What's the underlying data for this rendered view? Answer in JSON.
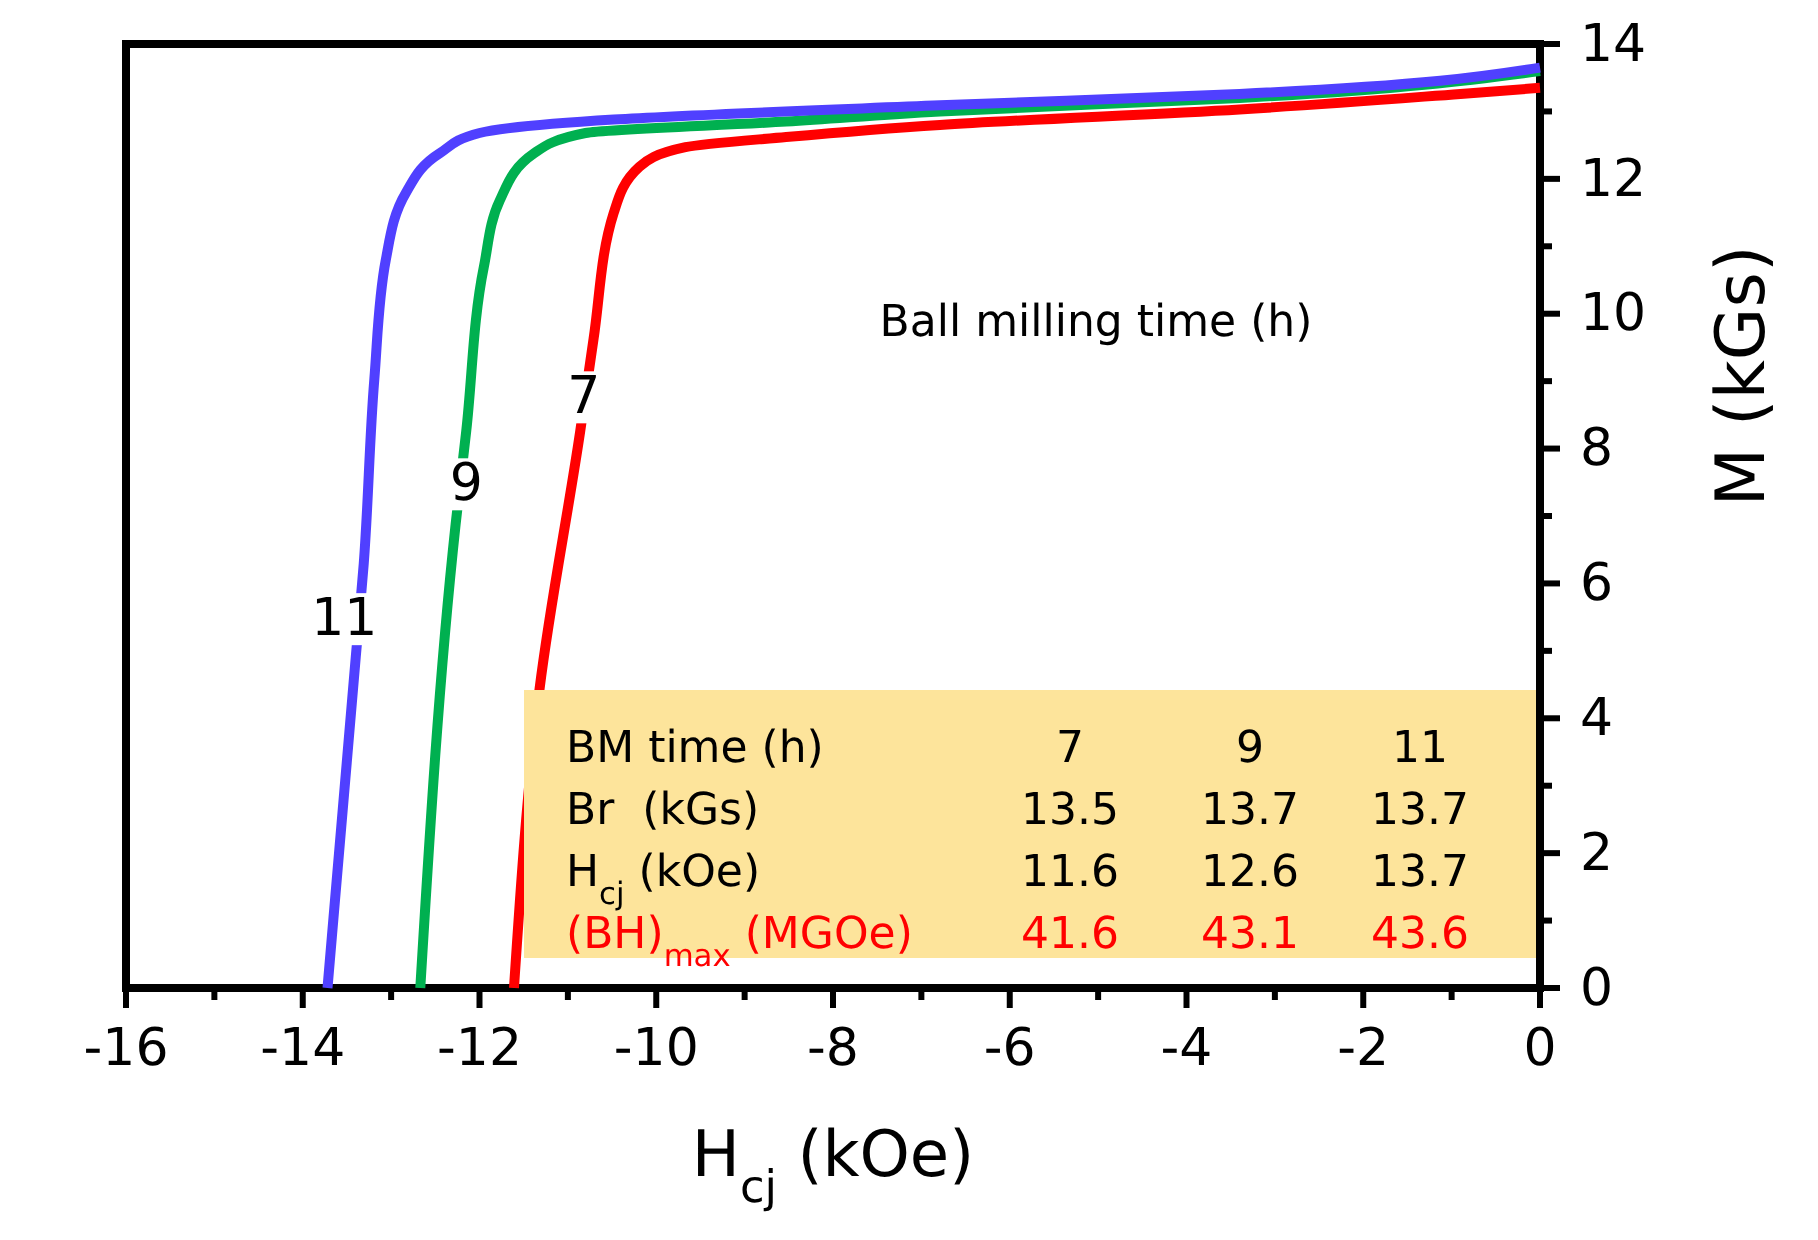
{
  "chart_data": {
    "type": "line",
    "xlabel": "H$_{cj}$ (kOe)",
    "ylabel": "M (kGs)",
    "xlim": [
      -16,
      0
    ],
    "ylim": [
      0,
      14
    ],
    "xticks": [
      -16,
      {
        "value": -15,
        "label": null
      },
      -14,
      {
        "value": -13,
        "label": null
      },
      -12,
      {
        "value": -11,
        "label": null
      },
      -10,
      {
        "value": -9,
        "label": null
      },
      -8,
      {
        "value": -7,
        "label": null
      },
      -6,
      {
        "value": -5,
        "label": null
      },
      -4,
      {
        "value": -3,
        "label": null
      },
      -2,
      {
        "value": -1,
        "label": null
      },
      0
    ],
    "yticks": [
      0,
      {
        "value": 1,
        "label": null
      },
      2,
      {
        "value": 3,
        "label": null
      },
      4,
      {
        "value": 5,
        "label": null
      },
      6,
      {
        "value": 7,
        "label": null
      },
      8,
      {
        "value": 9,
        "label": null
      },
      10,
      {
        "value": 11,
        "label": null
      },
      12,
      {
        "value": 13,
        "label": null
      },
      14
    ],
    "grid": false,
    "marker": "none",
    "line_style": "solid",
    "series": [
      {
        "color": "#ff0000",
        "x": [
          -11.61,
          -11.32,
          -10.86,
          -10.71,
          -10.48,
          -10.19,
          -9.67,
          -8.53,
          -6.79,
          -3.4,
          -0.9,
          0
        ],
        "values": [
          0,
          4.44,
          8.26,
          9.62,
          11.5,
          12.18,
          12.47,
          12.62,
          12.8,
          13.03,
          13.26,
          13.35
        ]
      },
      {
        "color": "#00b050",
        "x": [
          -12.67,
          -12.27,
          -12.15,
          -11.95,
          -11.77,
          -11.38,
          -10.8,
          -8.53,
          -6.79,
          -3.4,
          0
        ],
        "values": [
          0,
          6.88,
          8.26,
          10.7,
          11.68,
          12.38,
          12.68,
          12.85,
          13.0,
          13.2,
          13.6
        ]
      },
      {
        "color": "#5040ff",
        "x": [
          -13.72,
          -13.4,
          -13.31,
          -13.19,
          -13.06,
          -12.83,
          -12.45,
          -12.0,
          -10.48,
          -6.79,
          -3.4,
          0
        ],
        "values": [
          0,
          4.91,
          6.29,
          9.03,
          10.8,
          11.8,
          12.38,
          12.68,
          12.88,
          13.09,
          13.26,
          13.65
        ]
      }
    ],
    "annotations": [
      {
        "text": "7",
        "x": -10.82,
        "y": 8.76
      },
      {
        "text": "9",
        "x": -12.15,
        "y": 7.47
      },
      {
        "text": "11",
        "x": -13.53,
        "y": 5.47
      },
      "Ball milling time (h)",
      "BM time (h)",
      "7",
      "9",
      "11",
      "Br  (kGs)",
      "13.5",
      "13.7",
      "13.7",
      "H$_{cj}$ (kOe)",
      "11.6",
      "12.6",
      "13.7",
      "(BH)$_{max}$ (MGOe)",
      "41.6",
      "43.1",
      "43.6"
    ]
  }
}
